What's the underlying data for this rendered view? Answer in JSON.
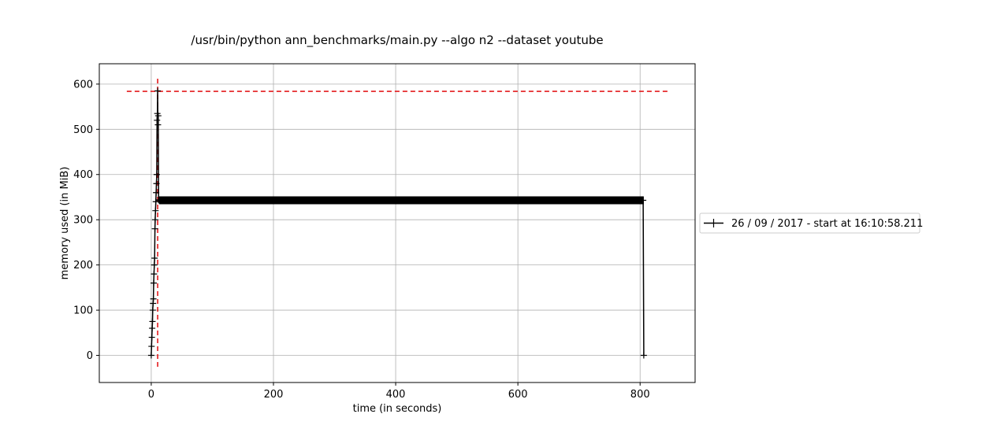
{
  "chart_data": {
    "type": "line",
    "title": "/usr/bin/python ann_benchmarks/main.py --algo n2 --dataset youtube",
    "xlabel": "time (in seconds)",
    "ylabel": "memory used (in MiB)",
    "xlim": [
      -85,
      890
    ],
    "ylim": [
      -60,
      645
    ],
    "xticks": [
      0,
      200,
      400,
      600,
      800
    ],
    "yticks": [
      0,
      100,
      200,
      300,
      400,
      500,
      600
    ],
    "xtick_labels": [
      "0",
      "200",
      "400",
      "600",
      "800"
    ],
    "ytick_labels": [
      "0",
      "100",
      "200",
      "300",
      "400",
      "500",
      "600"
    ],
    "grid": true,
    "legend_position": "right, outside plot",
    "series": [
      {
        "name": "26 / 09 / 2017 - start at 16:10:58.211",
        "color": "#000000",
        "marker": "+",
        "x": [
          0,
          0.5,
          1,
          1.5,
          2,
          2.5,
          3,
          3.5,
          4,
          4.5,
          5,
          5.5,
          6,
          6.5,
          7,
          7.5,
          8,
          8.5,
          9,
          9.5,
          10,
          10.5,
          11,
          11.5,
          12,
          12.5,
          13,
          805,
          806
        ],
        "y": [
          0,
          20,
          40,
          60,
          75,
          100,
          115,
          125,
          160,
          180,
          200,
          215,
          280,
          300,
          320,
          340,
          360,
          380,
          400,
          520,
          535,
          585,
          510,
          530,
          344,
          343,
          343,
          343,
          0
        ]
      }
    ],
    "plateau": {
      "x_start": 13,
      "x_end": 806,
      "y": 343
    },
    "reference_lines": [
      {
        "orientation": "horizontal",
        "y": 584,
        "x_start": -40,
        "x_end": 845,
        "color": "#e31a1c",
        "style": "dashed"
      },
      {
        "orientation": "vertical",
        "x": 10.5,
        "y_start": -30,
        "y_end": 612,
        "color": "#e31a1c",
        "style": "dashed"
      }
    ]
  }
}
